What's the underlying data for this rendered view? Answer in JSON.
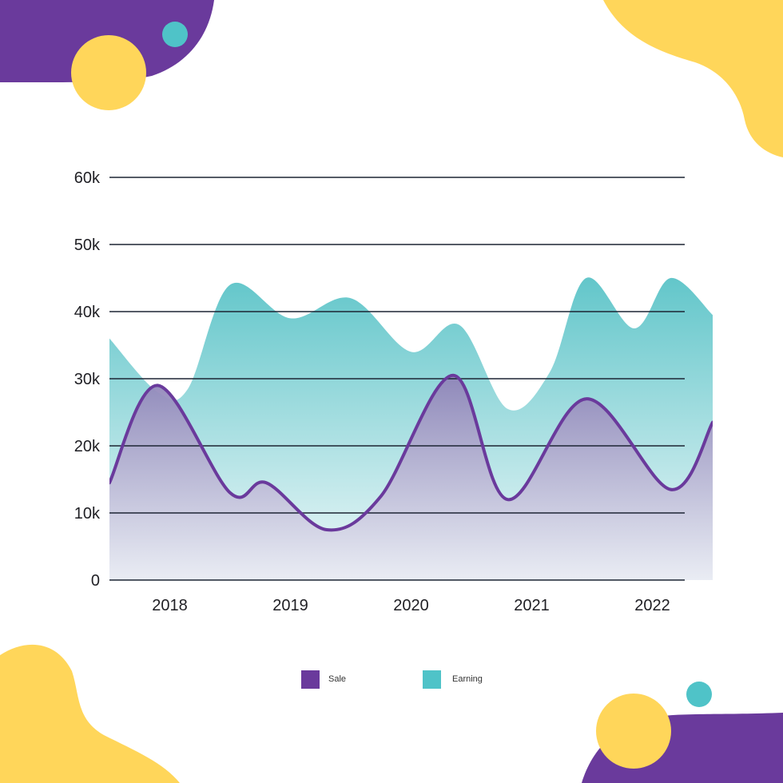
{
  "chart_data": {
    "type": "area",
    "title": "",
    "xlabel": "",
    "ylabel": "",
    "x_ticks": [
      "2018",
      "2019",
      "2020",
      "2021",
      "2022"
    ],
    "y_ticks": [
      "0",
      "10k",
      "20k",
      "30k",
      "40k",
      "50k",
      "60k"
    ],
    "ylim": [
      0,
      60000
    ],
    "xlim": [
      2017.5,
      2022.5
    ],
    "grid": true,
    "legend_position": "bottom",
    "series": [
      {
        "name": "Earning",
        "render": "smooth-area",
        "color": "#4fc3c8",
        "x": [
          2017.5,
          2017.9,
          2018.15,
          2018.5,
          2019.0,
          2019.5,
          2020.0,
          2020.4,
          2020.8,
          2021.15,
          2021.45,
          2021.85,
          2022.15,
          2022.5
        ],
        "values": [
          36000,
          28000,
          28500,
          44000,
          39000,
          42000,
          34000,
          38000,
          25500,
          31000,
          45000,
          37500,
          45000,
          39500
        ]
      },
      {
        "name": "Sale",
        "render": "smooth-line-with-area",
        "color": "#6a3a9c",
        "x": [
          2017.5,
          2017.9,
          2018.5,
          2018.8,
          2019.3,
          2019.75,
          2020.35,
          2020.8,
          2021.45,
          2022.15,
          2022.5
        ],
        "values": [
          14500,
          29000,
          13000,
          14500,
          7500,
          12500,
          30500,
          12000,
          27000,
          13500,
          23500
        ]
      }
    ],
    "legend": [
      {
        "label": "Sale",
        "color": "#6a3a9c"
      },
      {
        "label": "Earning",
        "color": "#4fc3c8"
      }
    ]
  },
  "decor": {
    "purple": "#6a3a9c",
    "yellow": "#ffd65a",
    "teal": "#4fc3c8"
  }
}
